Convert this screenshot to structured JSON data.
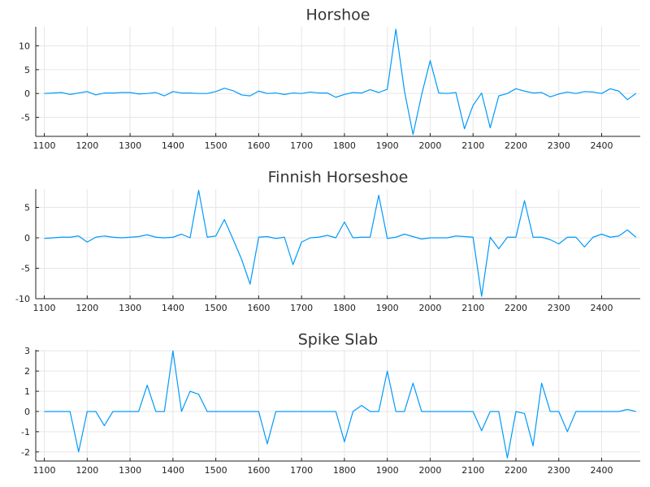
{
  "colors": {
    "series": "#009AFA",
    "grid": "#e6e6e6",
    "axis": "#222222"
  },
  "chart_data": [
    {
      "type": "line",
      "title": "Horshoe",
      "xlabel": "",
      "ylabel": "",
      "xlim": [
        1080,
        2490
      ],
      "ylim": [
        -9,
        14
      ],
      "xticks": [
        1100,
        1200,
        1300,
        1400,
        1500,
        1600,
        1700,
        1800,
        1900,
        2000,
        2100,
        2200,
        2300,
        2400
      ],
      "yticks": [
        10,
        5,
        0,
        -5
      ],
      "grid": true,
      "legend": "none",
      "series": [
        {
          "x": [
            1100,
            1120,
            1140,
            1160,
            1180,
            1200,
            1220,
            1240,
            1260,
            1280,
            1300,
            1320,
            1340,
            1360,
            1380,
            1400,
            1420,
            1440,
            1460,
            1480,
            1500,
            1520,
            1540,
            1560,
            1580,
            1600,
            1620,
            1640,
            1660,
            1680,
            1700,
            1720,
            1740,
            1760,
            1780,
            1800,
            1820,
            1840,
            1860,
            1880,
            1900,
            1920,
            1940,
            1960,
            1980,
            2000,
            2020,
            2040,
            2060,
            2080,
            2100,
            2120,
            2140,
            2160,
            2180,
            2200,
            2220,
            2240,
            2260,
            2280,
            2300,
            2320,
            2340,
            2360,
            2380,
            2400,
            2420,
            2440,
            2460,
            2480
          ],
          "values": [
            0,
            0.1,
            0.2,
            -0.2,
            0.1,
            0.4,
            -0.3,
            0.1,
            0.1,
            0.2,
            0.2,
            -0.1,
            0,
            0.2,
            -0.5,
            0.4,
            0.1,
            0.1,
            0,
            0,
            0.4,
            1.1,
            0.6,
            -0.3,
            -0.5,
            0.5,
            0,
            0.1,
            -0.2,
            0.1,
            0,
            0.3,
            0.1,
            0.1,
            -0.8,
            -0.2,
            0.2,
            0.1,
            0.8,
            0.2,
            0.9,
            13.5,
            0.5,
            -8.6,
            -0.3,
            6.9,
            0.1,
            0,
            0.2,
            -7.4,
            -2.5,
            0.1,
            -7.2,
            -0.5,
            0,
            1,
            0.5,
            0.1,
            0.2,
            -0.7,
            -0.1,
            0.3,
            0,
            0.4,
            0.3,
            0,
            1,
            0.5,
            -1.3,
            0
          ]
        }
      ]
    },
    {
      "type": "line",
      "title": "Finnish Horseshoe",
      "xlabel": "",
      "ylabel": "",
      "xlim": [
        1080,
        2490
      ],
      "ylim": [
        -10,
        8
      ],
      "xticks": [
        1100,
        1200,
        1300,
        1400,
        1500,
        1600,
        1700,
        1800,
        1900,
        2000,
        2100,
        2200,
        2300,
        2400
      ],
      "yticks": [
        5,
        0,
        -5,
        -10
      ],
      "grid": true,
      "legend": "none",
      "series": [
        {
          "x": [
            1100,
            1120,
            1140,
            1160,
            1180,
            1200,
            1220,
            1240,
            1260,
            1280,
            1300,
            1320,
            1340,
            1360,
            1380,
            1400,
            1420,
            1440,
            1460,
            1480,
            1500,
            1520,
            1540,
            1560,
            1580,
            1600,
            1620,
            1640,
            1660,
            1680,
            1700,
            1720,
            1740,
            1760,
            1780,
            1800,
            1820,
            1840,
            1860,
            1880,
            1900,
            1920,
            1940,
            1960,
            1980,
            2000,
            2020,
            2040,
            2060,
            2080,
            2100,
            2120,
            2140,
            2160,
            2180,
            2200,
            2220,
            2240,
            2260,
            2280,
            2300,
            2320,
            2340,
            2360,
            2380,
            2400,
            2420,
            2440,
            2460,
            2480
          ],
          "values": [
            -0.1,
            0,
            0.1,
            0.1,
            0.3,
            -0.7,
            0.1,
            0.3,
            0.1,
            0,
            0.1,
            0.2,
            0.5,
            0.1,
            0,
            0.1,
            0.6,
            0,
            7.8,
            0.1,
            0.3,
            3,
            -0.2,
            -3.5,
            -7.6,
            0.1,
            0.2,
            -0.1,
            0.1,
            -4.4,
            -0.7,
            0,
            0.1,
            0.4,
            0,
            2.6,
            0,
            0.1,
            0.1,
            7,
            -0.1,
            0.1,
            0.6,
            0.2,
            -0.2,
            0,
            0,
            0,
            0.3,
            0.2,
            0.1,
            -9.6,
            0.1,
            -1.8,
            0.1,
            0.1,
            6.1,
            0.1,
            0.1,
            -0.3,
            -1,
            0.1,
            0.1,
            -1.5,
            0.1,
            0.6,
            0.1,
            0.3,
            1.3,
            0.1
          ]
        }
      ]
    },
    {
      "type": "line",
      "title": "Spike Slab",
      "xlabel": "",
      "ylabel": "",
      "xlim": [
        1080,
        2490
      ],
      "ylim": [
        -2.45,
        3.05
      ],
      "xticks": [
        1100,
        1200,
        1300,
        1400,
        1500,
        1600,
        1700,
        1800,
        1900,
        2000,
        2100,
        2200,
        2300,
        2400
      ],
      "yticks": [
        3,
        2,
        1,
        0,
        -1,
        -2
      ],
      "grid": true,
      "legend": "none",
      "series": [
        {
          "x": [
            1100,
            1120,
            1140,
            1160,
            1180,
            1200,
            1220,
            1240,
            1260,
            1280,
            1300,
            1320,
            1340,
            1360,
            1380,
            1400,
            1420,
            1440,
            1460,
            1480,
            1500,
            1520,
            1540,
            1560,
            1580,
            1600,
            1620,
            1640,
            1660,
            1680,
            1700,
            1720,
            1740,
            1760,
            1780,
            1800,
            1820,
            1840,
            1860,
            1880,
            1900,
            1920,
            1940,
            1960,
            1980,
            2000,
            2020,
            2040,
            2060,
            2080,
            2100,
            2120,
            2140,
            2160,
            2180,
            2200,
            2220,
            2240,
            2260,
            2280,
            2300,
            2320,
            2340,
            2360,
            2380,
            2400,
            2420,
            2440,
            2460,
            2480
          ],
          "values": [
            0,
            0,
            0,
            0,
            -2,
            0,
            0,
            -0.7,
            0,
            0,
            0,
            0,
            1.3,
            0,
            0,
            3,
            0,
            1,
            0.85,
            0,
            0,
            0,
            0,
            0,
            0,
            0,
            -1.6,
            0,
            0,
            0,
            0,
            0,
            0,
            0,
            0,
            -1.5,
            0,
            0.3,
            0,
            0,
            2,
            0,
            0,
            1.4,
            0,
            0,
            0,
            0,
            0,
            0,
            0,
            -0.95,
            0,
            0,
            -2.3,
            0,
            -0.1,
            -1.7,
            1.4,
            0,
            0,
            -1,
            0,
            0,
            0,
            0,
            0,
            0,
            0.1,
            0
          ]
        }
      ]
    }
  ]
}
